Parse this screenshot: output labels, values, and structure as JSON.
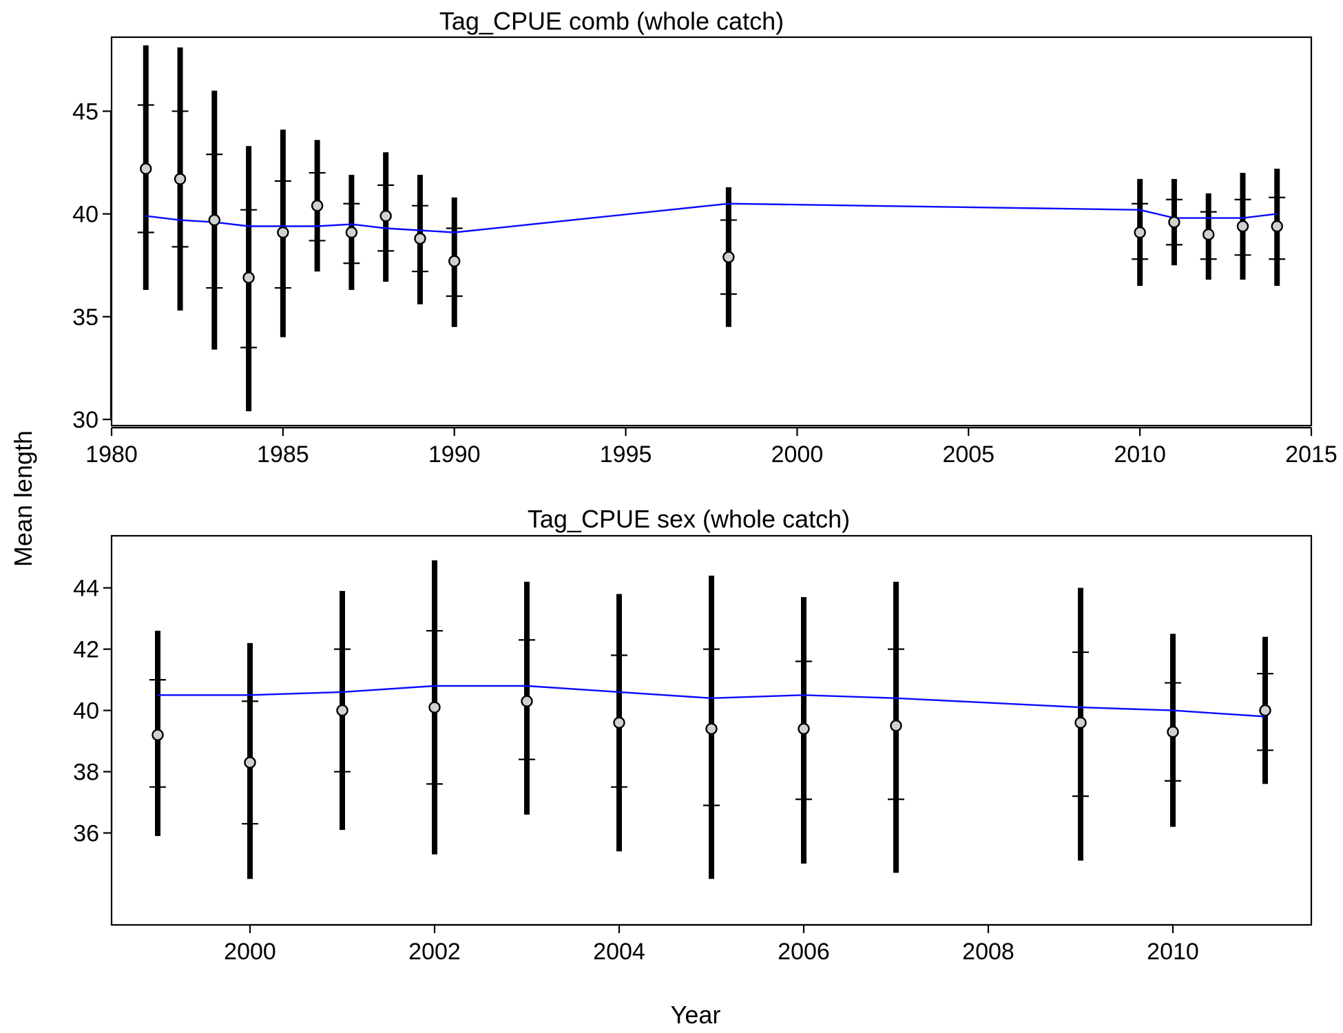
{
  "figure": {
    "ylabel": "Mean length",
    "xlabel": "Year"
  },
  "colors": {
    "fit_line": "#0a0aff",
    "point_fill": "#d0d0d0",
    "bars": "#000000"
  },
  "chart_data": [
    {
      "type": "scatter",
      "title": "Tag_CPUE comb (whole catch)",
      "xlim": [
        1980,
        2015
      ],
      "ylim": [
        29.7,
        48.6
      ],
      "xticks": [
        1980,
        1985,
        1990,
        1995,
        2000,
        2005,
        2010,
        2015
      ],
      "yticks": [
        30,
        35,
        40,
        45
      ],
      "x": [
        1981,
        1982,
        1983,
        1984,
        1985,
        1986,
        1987,
        1988,
        1989,
        1990,
        1998,
        2010,
        2011,
        2012,
        2013,
        2014
      ],
      "observed": [
        42.2,
        41.7,
        39.7,
        36.9,
        39.1,
        40.4,
        39.1,
        39.9,
        38.8,
        37.7,
        37.9,
        39.1,
        39.6,
        39.0,
        39.4,
        39.4
      ],
      "ci_outer_low": [
        36.3,
        35.3,
        33.4,
        30.4,
        34.0,
        37.2,
        36.3,
        36.7,
        35.6,
        34.5,
        34.5,
        36.5,
        37.5,
        36.8,
        36.8,
        36.5
      ],
      "ci_outer_high": [
        48.2,
        48.1,
        46.0,
        43.3,
        44.1,
        43.6,
        41.9,
        43.0,
        41.9,
        40.8,
        41.3,
        41.7,
        41.7,
        41.0,
        42.0,
        42.2
      ],
      "ci_inner_low": [
        39.1,
        38.4,
        36.4,
        33.5,
        36.4,
        38.7,
        37.6,
        38.2,
        37.2,
        36.0,
        36.1,
        37.8,
        38.5,
        37.8,
        38.0,
        37.8
      ],
      "ci_inner_high": [
        45.3,
        45.0,
        42.9,
        40.2,
        41.6,
        42.0,
        40.5,
        41.4,
        40.4,
        39.3,
        39.7,
        40.5,
        40.7,
        40.1,
        40.7,
        40.8
      ],
      "fitted": [
        39.9,
        39.7,
        39.6,
        39.4,
        39.4,
        39.4,
        39.5,
        39.3,
        39.2,
        39.1,
        40.5,
        40.2,
        39.8,
        39.8,
        39.8,
        40.0
      ]
    },
    {
      "type": "scatter",
      "title": "Tag_CPUE sex (whole catch)",
      "xlim": [
        1998.5,
        2011.5
      ],
      "ylim": [
        33.0,
        45.7
      ],
      "xticks": [
        2000,
        2002,
        2004,
        2006,
        2008,
        2010
      ],
      "yticks": [
        36,
        38,
        40,
        42,
        44
      ],
      "x": [
        1999,
        2000,
        2001,
        2002,
        2003,
        2004,
        2005,
        2006,
        2007,
        2009,
        2010,
        2011
      ],
      "observed": [
        39.2,
        38.3,
        40.0,
        40.1,
        40.3,
        39.6,
        39.4,
        39.4,
        39.5,
        39.6,
        39.3,
        40.0
      ],
      "ci_outer_low": [
        35.9,
        34.5,
        36.1,
        35.3,
        36.6,
        35.4,
        34.5,
        35.0,
        34.7,
        35.1,
        36.2,
        37.6
      ],
      "ci_outer_high": [
        42.6,
        42.2,
        43.9,
        44.9,
        44.2,
        43.8,
        44.4,
        43.7,
        44.2,
        44.0,
        42.5,
        42.4
      ],
      "ci_inner_low": [
        37.5,
        36.3,
        38.0,
        37.6,
        38.4,
        37.5,
        36.9,
        37.1,
        37.1,
        37.2,
        37.7,
        38.7
      ],
      "ci_inner_high": [
        41.0,
        40.3,
        42.0,
        42.6,
        42.3,
        41.8,
        42.0,
        41.6,
        42.0,
        41.9,
        40.9,
        41.2
      ],
      "fitted": [
        40.5,
        40.5,
        40.6,
        40.8,
        40.8,
        40.6,
        40.4,
        40.5,
        40.4,
        40.1,
        40.0,
        39.8
      ]
    }
  ]
}
